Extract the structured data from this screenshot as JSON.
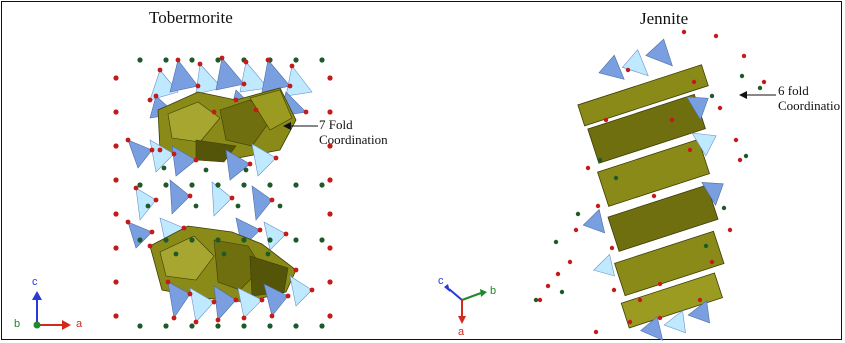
{
  "panels": [
    {
      "title": "Tobermorite",
      "annotation": [
        "7 Fold",
        "Coordination"
      ],
      "axes": {
        "vertical": "c",
        "left": "b",
        "right": "a"
      }
    },
    {
      "title": "Jennite",
      "annotation": [
        "6 fold",
        "Coordinatio"
      ],
      "axes": {
        "upper_left": "c",
        "right": "b",
        "down": "a"
      }
    }
  ],
  "colors": {
    "ca_polyhedra": "#8a8a18",
    "si_tetrahedra": "#7a9fe0",
    "si_tetrahedra_light": "#bfe9ff",
    "oxygen": "#c41a1a",
    "water": "#1d5a2a",
    "axis_c": "#2a3ad6",
    "axis_b": "#1e8a2a",
    "axis_a": "#d42a1a"
  }
}
